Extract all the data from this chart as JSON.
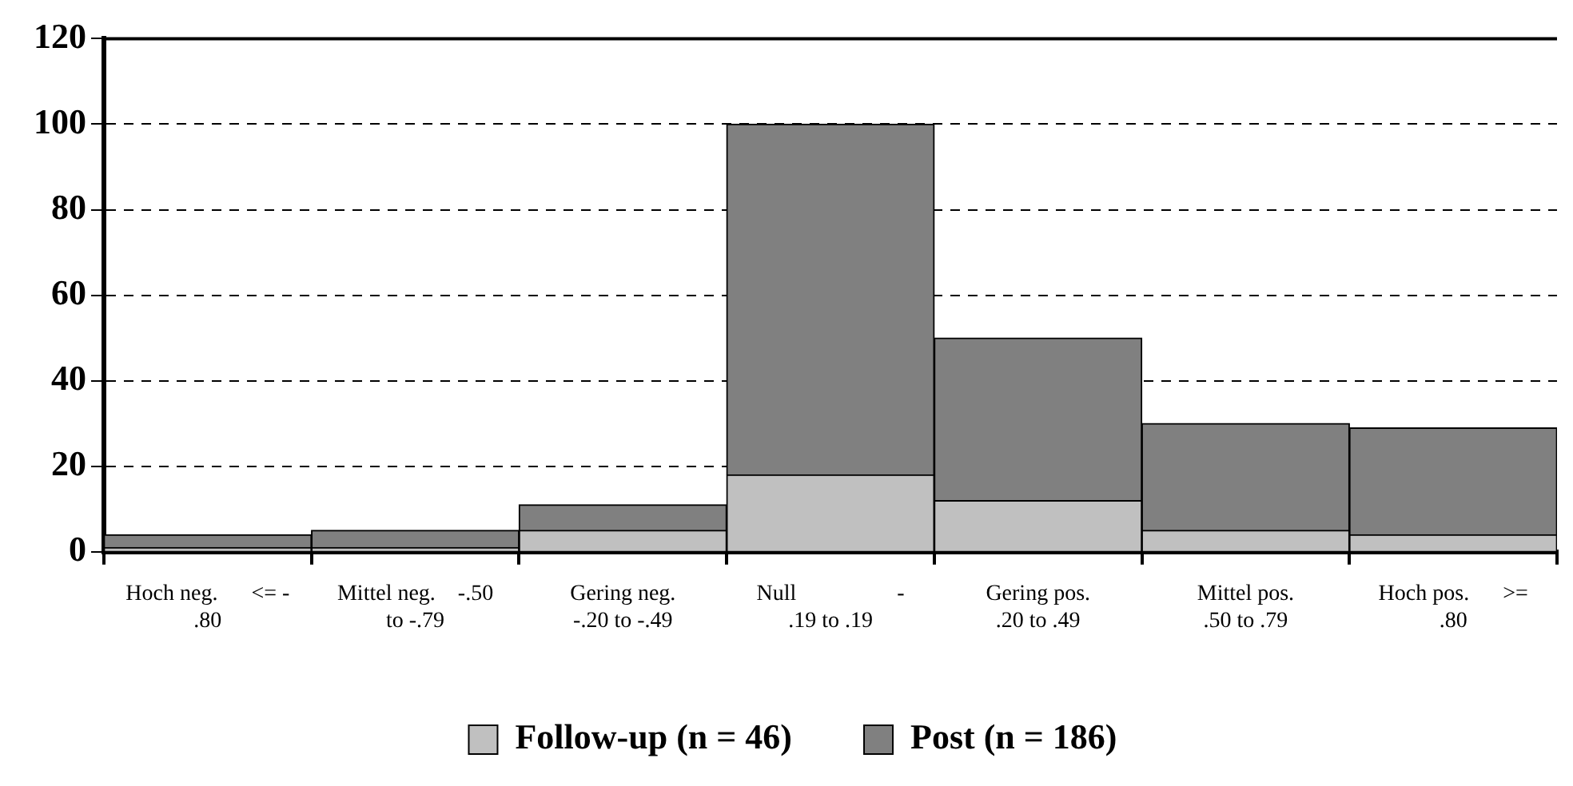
{
  "chart_data": {
    "type": "bar",
    "stacked": true,
    "categories": [
      "Hoch neg.      <= -\n.80",
      "Mittel neg.    -.50\nto -.79",
      "Gering neg.\n-.20 to -.49",
      "Null                  -\n.19 to .19",
      "Gering pos.\n.20 to .49",
      "Mittel pos.\n.50 to .79",
      "Hoch pos.      >=\n.80"
    ],
    "series": [
      {
        "name": "Follow-up (n = 46)",
        "color": "#c0c0c0",
        "values": [
          1,
          1,
          5,
          18,
          12,
          5,
          4
        ]
      },
      {
        "name": "Post (n = 186)",
        "color": "#808080",
        "values": [
          3,
          4,
          6,
          82,
          38,
          25,
          25
        ]
      }
    ],
    "ylim": [
      0,
      120
    ],
    "yticks": [
      0,
      20,
      40,
      60,
      80,
      100,
      120
    ],
    "grid": "y",
    "legend": "bottom"
  }
}
